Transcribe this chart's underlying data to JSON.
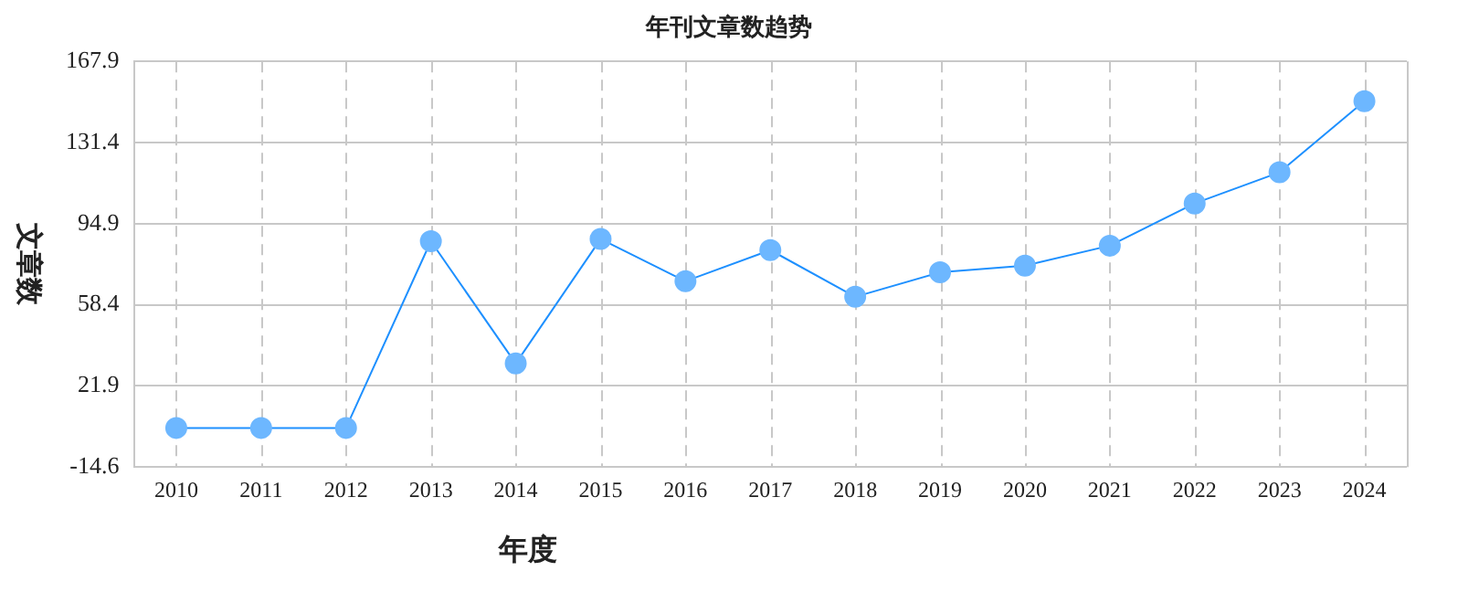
{
  "chart_data": {
    "type": "line",
    "title": "年刊文章数趋势",
    "xlabel": "年度",
    "ylabel": "文章数",
    "categories": [
      "2010",
      "2011",
      "2012",
      "2013",
      "2014",
      "2015",
      "2016",
      "2017",
      "2018",
      "2019",
      "2020",
      "2021",
      "2022",
      "2023",
      "2024"
    ],
    "series": [
      {
        "color": "#1e90ff",
        "values": [
          3,
          3,
          3,
          87,
          32,
          88,
          69,
          83,
          62,
          73,
          76,
          85,
          104,
          118,
          150
        ]
      }
    ],
    "ylim": [
      -14.6,
      167.9
    ],
    "yticks": [
      -14.6,
      21.9,
      58.4,
      94.9,
      131.4,
      167.9
    ],
    "grid": true,
    "marker": "circle",
    "line_style": "solid",
    "legend": false
  }
}
